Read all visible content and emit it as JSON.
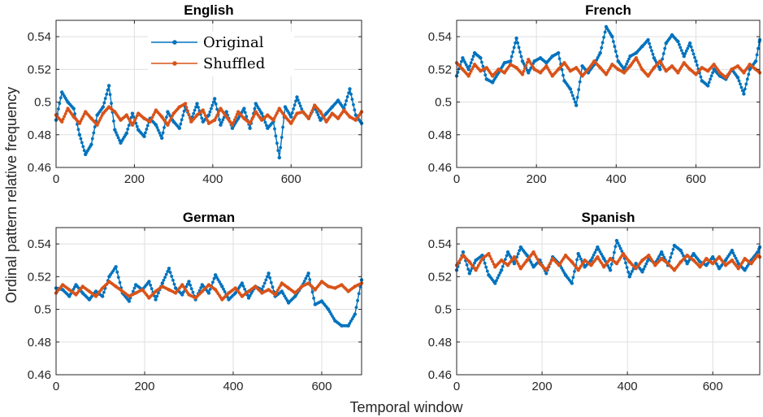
{
  "figure": {
    "xlabel": "Temporal window",
    "ylabel": "Ordinal pattern relative frequency"
  },
  "legend": {
    "location": "top-center",
    "entries": [
      "Original",
      "Shuffled"
    ]
  },
  "colors": {
    "original": "#0072BD",
    "shuffled": "#D95319"
  },
  "chart_data": [
    {
      "type": "line",
      "title": "English",
      "xlim": [
        0,
        780
      ],
      "ylim": [
        0.46,
        0.55
      ],
      "xticks": [
        0,
        200,
        400,
        600
      ],
      "yticks": [
        0.46,
        0.48,
        0.5,
        0.52,
        0.54
      ],
      "ytick_labels": [
        "0.46",
        "0.48",
        "0.5",
        "0.52",
        "0.54"
      ],
      "grid": true,
      "series": [
        {
          "name": "Original",
          "x": [
            0,
            15,
            30,
            45,
            60,
            75,
            90,
            105,
            120,
            135,
            150,
            165,
            180,
            195,
            210,
            225,
            240,
            255,
            270,
            285,
            300,
            315,
            330,
            345,
            360,
            375,
            390,
            405,
            420,
            435,
            450,
            465,
            480,
            495,
            510,
            525,
            540,
            555,
            570,
            585,
            600,
            615,
            630,
            645,
            660,
            675,
            690,
            705,
            720,
            735,
            750,
            765,
            780
          ],
          "y": [
            0.489,
            0.506,
            0.5,
            0.496,
            0.48,
            0.468,
            0.474,
            0.492,
            0.497,
            0.51,
            0.483,
            0.475,
            0.481,
            0.493,
            0.483,
            0.479,
            0.49,
            0.486,
            0.478,
            0.494,
            0.488,
            0.484,
            0.497,
            0.489,
            0.499,
            0.488,
            0.492,
            0.502,
            0.486,
            0.494,
            0.484,
            0.49,
            0.496,
            0.484,
            0.499,
            0.493,
            0.484,
            0.488,
            0.466,
            0.497,
            0.491,
            0.503,
            0.494,
            0.49,
            0.497,
            0.489,
            0.493,
            0.497,
            0.501,
            0.496,
            0.508,
            0.492,
            0.487
          ]
        },
        {
          "name": "Shuffled",
          "x": [
            0,
            15,
            30,
            45,
            60,
            75,
            90,
            105,
            120,
            135,
            150,
            165,
            180,
            195,
            210,
            225,
            240,
            255,
            270,
            285,
            300,
            315,
            330,
            345,
            360,
            375,
            390,
            405,
            420,
            435,
            450,
            465,
            480,
            495,
            510,
            525,
            540,
            555,
            570,
            585,
            600,
            615,
            630,
            645,
            660,
            675,
            690,
            705,
            720,
            735,
            750,
            765,
            780
          ],
          "y": [
            0.492,
            0.488,
            0.496,
            0.491,
            0.487,
            0.494,
            0.49,
            0.486,
            0.493,
            0.497,
            0.494,
            0.489,
            0.492,
            0.486,
            0.493,
            0.49,
            0.488,
            0.495,
            0.491,
            0.486,
            0.493,
            0.497,
            0.499,
            0.488,
            0.492,
            0.495,
            0.487,
            0.489,
            0.496,
            0.491,
            0.486,
            0.494,
            0.49,
            0.487,
            0.494,
            0.489,
            0.492,
            0.489,
            0.496,
            0.491,
            0.487,
            0.493,
            0.494,
            0.49,
            0.498,
            0.494,
            0.488,
            0.493,
            0.49,
            0.495,
            0.491,
            0.489,
            0.494
          ]
        }
      ]
    },
    {
      "type": "line",
      "title": "French",
      "xlim": [
        0,
        760
      ],
      "ylim": [
        0.46,
        0.55
      ],
      "xticks": [
        0,
        200,
        400,
        600
      ],
      "yticks": [
        0.46,
        0.48,
        0.5,
        0.52,
        0.54
      ],
      "ytick_labels": [
        "0.46",
        "0.48",
        "0.5",
        "0.52",
        "0.54"
      ],
      "grid": true,
      "series": [
        {
          "name": "Original",
          "x": [
            0,
            15,
            30,
            45,
            60,
            75,
            90,
            105,
            120,
            135,
            150,
            165,
            180,
            195,
            210,
            225,
            240,
            255,
            270,
            285,
            300,
            315,
            330,
            345,
            360,
            375,
            390,
            405,
            420,
            435,
            450,
            465,
            480,
            495,
            510,
            525,
            540,
            555,
            570,
            585,
            600,
            615,
            630,
            645,
            660,
            675,
            690,
            705,
            720,
            735,
            750,
            760
          ],
          "y": [
            0.516,
            0.527,
            0.52,
            0.53,
            0.527,
            0.514,
            0.512,
            0.518,
            0.524,
            0.525,
            0.539,
            0.525,
            0.518,
            0.525,
            0.527,
            0.524,
            0.528,
            0.53,
            0.513,
            0.508,
            0.498,
            0.522,
            0.518,
            0.523,
            0.53,
            0.546,
            0.54,
            0.525,
            0.52,
            0.528,
            0.53,
            0.534,
            0.538,
            0.527,
            0.52,
            0.536,
            0.541,
            0.537,
            0.528,
            0.536,
            0.525,
            0.513,
            0.51,
            0.52,
            0.516,
            0.514,
            0.52,
            0.515,
            0.505,
            0.52,
            0.525,
            0.538
          ]
        },
        {
          "name": "Shuffled",
          "x": [
            0,
            15,
            30,
            45,
            60,
            75,
            90,
            105,
            120,
            135,
            150,
            165,
            180,
            195,
            210,
            225,
            240,
            255,
            270,
            285,
            300,
            315,
            330,
            345,
            360,
            375,
            390,
            405,
            420,
            435,
            450,
            465,
            480,
            495,
            510,
            525,
            540,
            555,
            570,
            585,
            600,
            615,
            630,
            645,
            660,
            675,
            690,
            705,
            720,
            735,
            750,
            760
          ],
          "y": [
            0.524,
            0.52,
            0.516,
            0.523,
            0.519,
            0.521,
            0.516,
            0.52,
            0.518,
            0.523,
            0.521,
            0.517,
            0.526,
            0.52,
            0.518,
            0.522,
            0.516,
            0.52,
            0.524,
            0.519,
            0.521,
            0.516,
            0.52,
            0.525,
            0.521,
            0.517,
            0.523,
            0.52,
            0.518,
            0.522,
            0.527,
            0.52,
            0.516,
            0.521,
            0.525,
            0.519,
            0.522,
            0.518,
            0.524,
            0.52,
            0.517,
            0.521,
            0.519,
            0.523,
            0.518,
            0.515,
            0.52,
            0.522,
            0.518,
            0.523,
            0.52,
            0.518
          ]
        }
      ]
    },
    {
      "type": "line",
      "title": "German",
      "xlim": [
        0,
        690
      ],
      "ylim": [
        0.46,
        0.55
      ],
      "xticks": [
        0,
        200,
        400,
        600
      ],
      "yticks": [
        0.46,
        0.48,
        0.5,
        0.52,
        0.54
      ],
      "ytick_labels": [
        "0.46",
        "0.48",
        "0.5",
        "0.52",
        "0.54"
      ],
      "grid": true,
      "series": [
        {
          "name": "Original",
          "x": [
            0,
            15,
            30,
            45,
            60,
            75,
            90,
            105,
            120,
            135,
            150,
            165,
            180,
            195,
            210,
            225,
            240,
            255,
            270,
            285,
            300,
            315,
            330,
            345,
            360,
            375,
            390,
            405,
            420,
            435,
            450,
            465,
            480,
            495,
            510,
            525,
            540,
            555,
            570,
            585,
            600,
            615,
            630,
            645,
            660,
            675,
            690
          ],
          "y": [
            0.513,
            0.512,
            0.508,
            0.515,
            0.51,
            0.506,
            0.511,
            0.508,
            0.52,
            0.526,
            0.51,
            0.505,
            0.515,
            0.512,
            0.517,
            0.506,
            0.516,
            0.525,
            0.513,
            0.509,
            0.517,
            0.506,
            0.515,
            0.51,
            0.521,
            0.514,
            0.506,
            0.51,
            0.516,
            0.507,
            0.514,
            0.512,
            0.522,
            0.508,
            0.511,
            0.504,
            0.508,
            0.514,
            0.522,
            0.503,
            0.505,
            0.5,
            0.493,
            0.49,
            0.49,
            0.497,
            0.518
          ]
        },
        {
          "name": "Shuffled",
          "x": [
            0,
            15,
            30,
            45,
            60,
            75,
            90,
            105,
            120,
            135,
            150,
            165,
            180,
            195,
            210,
            225,
            240,
            255,
            270,
            285,
            300,
            315,
            330,
            345,
            360,
            375,
            390,
            405,
            420,
            435,
            450,
            465,
            480,
            495,
            510,
            525,
            540,
            555,
            570,
            585,
            600,
            615,
            630,
            645,
            660,
            675,
            690
          ],
          "y": [
            0.51,
            0.515,
            0.512,
            0.509,
            0.514,
            0.511,
            0.508,
            0.513,
            0.517,
            0.514,
            0.511,
            0.508,
            0.51,
            0.512,
            0.507,
            0.511,
            0.514,
            0.512,
            0.51,
            0.515,
            0.509,
            0.507,
            0.511,
            0.515,
            0.512,
            0.506,
            0.51,
            0.513,
            0.508,
            0.511,
            0.514,
            0.51,
            0.512,
            0.509,
            0.516,
            0.513,
            0.51,
            0.514,
            0.516,
            0.512,
            0.517,
            0.514,
            0.513,
            0.515,
            0.511,
            0.514,
            0.516
          ]
        }
      ]
    },
    {
      "type": "line",
      "title": "Spanish",
      "xlim": [
        0,
        710
      ],
      "ylim": [
        0.46,
        0.55
      ],
      "xticks": [
        0,
        200,
        400,
        600
      ],
      "yticks": [
        0.46,
        0.48,
        0.5,
        0.52,
        0.54
      ],
      "ytick_labels": [
        "0.46",
        "0.48",
        "0.5",
        "0.52",
        "0.54"
      ],
      "grid": true,
      "series": [
        {
          "name": "Original",
          "x": [
            0,
            15,
            30,
            45,
            60,
            75,
            90,
            105,
            120,
            135,
            150,
            165,
            180,
            195,
            210,
            225,
            240,
            255,
            270,
            285,
            300,
            315,
            330,
            345,
            360,
            375,
            390,
            405,
            420,
            435,
            450,
            465,
            480,
            495,
            510,
            525,
            540,
            555,
            570,
            585,
            600,
            615,
            630,
            645,
            660,
            675,
            690,
            705,
            710
          ],
          "y": [
            0.524,
            0.535,
            0.522,
            0.53,
            0.533,
            0.521,
            0.516,
            0.524,
            0.535,
            0.528,
            0.538,
            0.533,
            0.526,
            0.53,
            0.522,
            0.532,
            0.528,
            0.521,
            0.516,
            0.534,
            0.526,
            0.53,
            0.538,
            0.531,
            0.524,
            0.542,
            0.534,
            0.52,
            0.528,
            0.523,
            0.531,
            0.528,
            0.535,
            0.527,
            0.539,
            0.536,
            0.528,
            0.534,
            0.529,
            0.527,
            0.532,
            0.525,
            0.53,
            0.536,
            0.528,
            0.524,
            0.53,
            0.535,
            0.538
          ]
        },
        {
          "name": "Shuffled",
          "x": [
            0,
            15,
            30,
            45,
            60,
            75,
            90,
            105,
            120,
            135,
            150,
            165,
            180,
            195,
            210,
            225,
            240,
            255,
            270,
            285,
            300,
            315,
            330,
            345,
            360,
            375,
            390,
            405,
            420,
            435,
            450,
            465,
            480,
            495,
            510,
            525,
            540,
            555,
            570,
            585,
            600,
            615,
            630,
            645,
            660,
            675,
            690,
            705,
            710
          ],
          "y": [
            0.527,
            0.533,
            0.529,
            0.524,
            0.531,
            0.534,
            0.526,
            0.53,
            0.527,
            0.532,
            0.525,
            0.53,
            0.535,
            0.528,
            0.524,
            0.531,
            0.527,
            0.533,
            0.529,
            0.524,
            0.53,
            0.527,
            0.532,
            0.526,
            0.531,
            0.528,
            0.534,
            0.529,
            0.525,
            0.53,
            0.533,
            0.527,
            0.531,
            0.528,
            0.524,
            0.529,
            0.533,
            0.53,
            0.526,
            0.531,
            0.528,
            0.532,
            0.527,
            0.53,
            0.525,
            0.531,
            0.528,
            0.533,
            0.532
          ]
        }
      ]
    }
  ]
}
